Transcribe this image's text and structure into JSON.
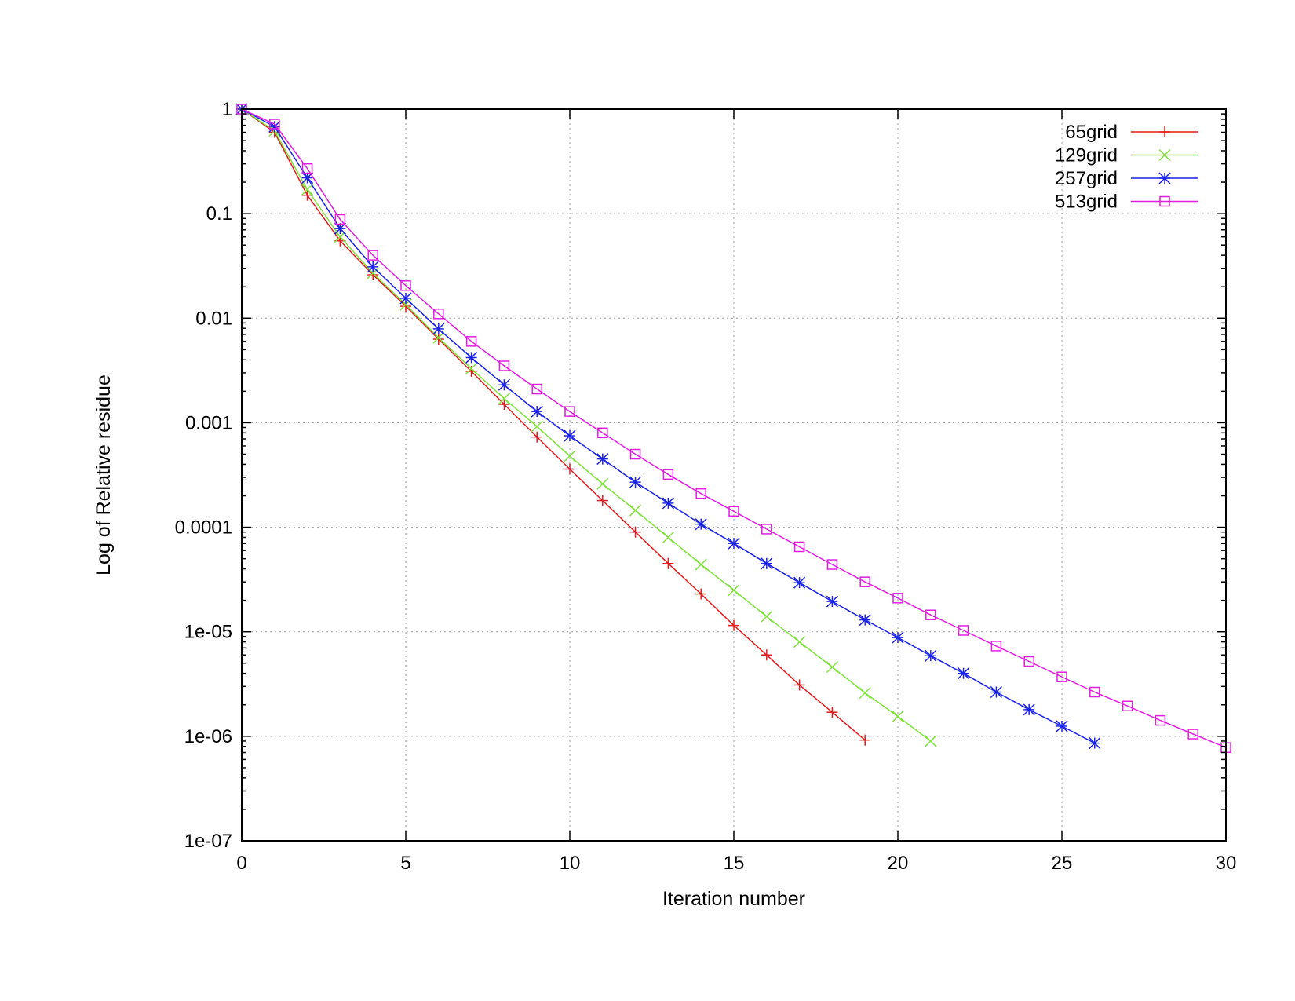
{
  "chart_data": {
    "type": "line",
    "title": "",
    "xlabel": "Iteration number",
    "ylabel": "Log of Relative residue",
    "xlim": [
      0,
      30
    ],
    "ylim": [
      1e-07,
      1
    ],
    "yscale": "log",
    "grid": true,
    "legend_position": "top-right",
    "xticks": [
      "0",
      "5",
      "10",
      "15",
      "20",
      "25",
      "30"
    ],
    "yticks": [
      "1",
      "0.1",
      "0.01",
      "0.001",
      "0.0001",
      "1e-05",
      "1e-06",
      "1e-07"
    ],
    "series": [
      {
        "name": "65grid",
        "color": "#e41a1c",
        "marker": "plus",
        "x": [
          0,
          1,
          2,
          3,
          4,
          5,
          6,
          7,
          8,
          9,
          10,
          11,
          12,
          13,
          14,
          15,
          16,
          17,
          18,
          19
        ],
        "y": [
          1,
          0.6,
          0.15,
          0.055,
          0.026,
          0.013,
          0.0063,
          0.0031,
          0.0015,
          0.00073,
          0.00036,
          0.00018,
          9e-05,
          4.5e-05,
          2.3e-05,
          1.15e-05,
          6e-06,
          3.1e-06,
          1.7e-06,
          9.2e-07
        ]
      },
      {
        "name": "129grid",
        "color": "#7fe23b",
        "marker": "cross",
        "x": [
          0,
          1,
          2,
          3,
          4,
          5,
          6,
          7,
          8,
          9,
          10,
          11,
          12,
          13,
          14,
          15,
          16,
          17,
          18,
          19,
          20,
          21
        ],
        "y": [
          1,
          0.62,
          0.17,
          0.06,
          0.027,
          0.0135,
          0.0065,
          0.0033,
          0.0017,
          0.00092,
          0.00048,
          0.00026,
          0.000145,
          8e-05,
          4.4e-05,
          2.5e-05,
          1.4e-05,
          8e-06,
          4.6e-06,
          2.6e-06,
          1.55e-06,
          9e-07
        ]
      },
      {
        "name": "257grid",
        "color": "#1a22e6",
        "marker": "star",
        "x": [
          0,
          1,
          2,
          3,
          4,
          5,
          6,
          7,
          8,
          9,
          10,
          11,
          12,
          13,
          14,
          15,
          16,
          17,
          18,
          19,
          20,
          21,
          22,
          23,
          24,
          25,
          26
        ],
        "y": [
          1,
          0.68,
          0.22,
          0.072,
          0.031,
          0.0155,
          0.0079,
          0.0042,
          0.0023,
          0.00128,
          0.00075,
          0.00045,
          0.00027,
          0.00017,
          0.000107,
          7e-05,
          4.5e-05,
          2.95e-05,
          1.95e-05,
          1.3e-05,
          8.8e-06,
          5.9e-06,
          4e-06,
          2.65e-06,
          1.8e-06,
          1.25e-06,
          8.6e-07
        ]
      },
      {
        "name": "513grid",
        "color": "#e01ee0",
        "marker": "square",
        "x": [
          0,
          1,
          2,
          3,
          4,
          5,
          6,
          7,
          8,
          9,
          10,
          11,
          12,
          13,
          14,
          15,
          16,
          17,
          18,
          19,
          20,
          21,
          22,
          23,
          24,
          25,
          26,
          27,
          28,
          29,
          30
        ],
        "y": [
          1,
          0.72,
          0.27,
          0.088,
          0.04,
          0.0205,
          0.011,
          0.006,
          0.0035,
          0.0021,
          0.00128,
          0.0008,
          0.0005,
          0.00032,
          0.00021,
          0.000142,
          9.6e-05,
          6.5e-05,
          4.4e-05,
          3e-05,
          2.1e-05,
          1.45e-05,
          1.03e-05,
          7.3e-06,
          5.2e-06,
          3.7e-06,
          2.65e-06,
          1.95e-06,
          1.42e-06,
          1.05e-06,
          7.8e-07
        ]
      }
    ]
  }
}
